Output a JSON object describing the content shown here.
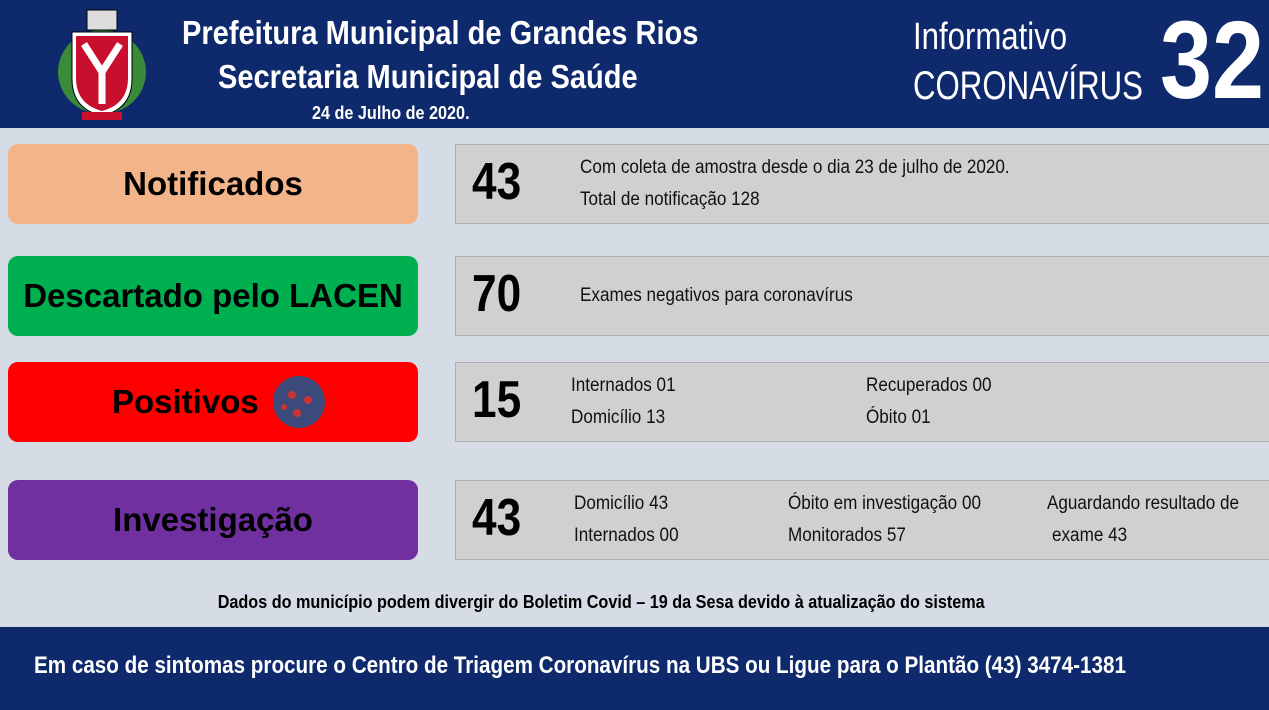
{
  "header": {
    "title_line1": "Prefeitura Municipal de Grandes Rios",
    "title_line2": "Secretaria Municipal de Saúde",
    "date": "24 de Julho de 2020.",
    "label_line1": "Informativo",
    "label_line2": "CORONAVÍRUS",
    "number": "32"
  },
  "rows": [
    {
      "label": "Notificados",
      "number": "43",
      "columns": [
        [
          "Com coleta de amostra desde o dia 23 de julho de 2020.",
          "Total  de notificação  128"
        ]
      ]
    },
    {
      "label": "Descartado pelo LACEN",
      "number": "70",
      "columns": [
        [
          "Exames negativos  para coronavírus"
        ]
      ]
    },
    {
      "label": "Positivos",
      "number": "15",
      "columns": [
        [
          "Internados 01",
          "Domicílio 13"
        ],
        [
          "Recuperados 00",
          "Óbito  01"
        ]
      ]
    },
    {
      "label": "Investigação",
      "number": "43",
      "columns": [
        [
          "Domicílio  43",
          "Internados  00"
        ],
        [
          "Óbito  em investigação  00",
          "Monitorados  57"
        ],
        [
          "Aguardando resultado de",
          "exame 43"
        ]
      ]
    }
  ],
  "note": "Dados  do  município  podem  divergir  do  Boletim  Covid – 19  da  Sesa  devido  à  atualização  do  sistema",
  "footer": "Em caso de sintomas  procure  o Centro de Triagem  Coronavírus  na UBS ou Ligue  para  o Plantão  (43) 3474-1381"
}
